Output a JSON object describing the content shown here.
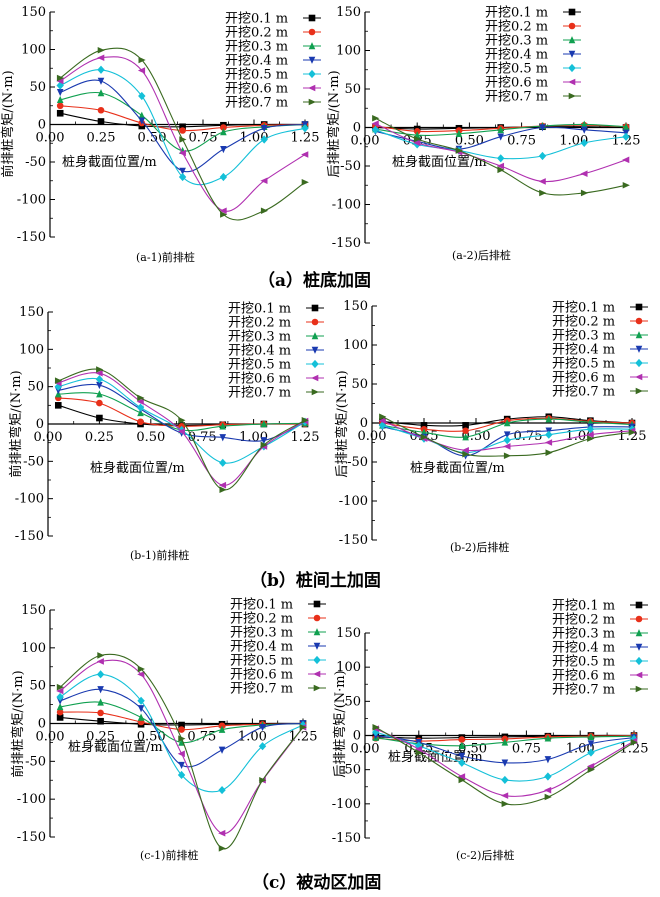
{
  "row_titles": [
    "（a）桩底加固",
    "（b）桩间土加固",
    "（c）被动区加固"
  ],
  "captions": [
    "(a-1)前排桩",
    "(a-2)后排桩",
    "(b-1)前排桩",
    "(b-2)后排桩",
    "(c-1)前排桩",
    "(c-2)后排桩"
  ],
  "series_colors": [
    "#000000",
    "#e8301a",
    "#10a050",
    "#1a3ab0",
    "#14c0d8",
    "#b030b0",
    "#3a6a20"
  ],
  "chart_data": [
    {
      "id": "a1",
      "type": "line",
      "title": "",
      "xlabel": "桩身截面位置/m",
      "ylabel": "前排桩弯矩/(N·m)",
      "xlim": [
        0,
        1.25
      ],
      "ylim": [
        -150,
        150
      ],
      "xticks": [
        0.0,
        0.25,
        0.5,
        0.75,
        1.0,
        1.25
      ],
      "yticks": [
        -150,
        -100,
        -50,
        0,
        50,
        100,
        150
      ],
      "legend_position": "top-right",
      "series": [
        {
          "name": "开挖0.1 m",
          "x": [
            0.05,
            0.25,
            0.45,
            0.65,
            0.85,
            1.05,
            1.25
          ],
          "y": [
            15,
            4,
            -2,
            -3,
            -1,
            0,
            0
          ]
        },
        {
          "name": "开挖0.2 m",
          "x": [
            0.05,
            0.25,
            0.45,
            0.65,
            0.85,
            1.05,
            1.25
          ],
          "y": [
            25,
            19,
            2,
            -8,
            -4,
            -1,
            0
          ]
        },
        {
          "name": "开挖0.3 m",
          "x": [
            0.05,
            0.25,
            0.45,
            0.65,
            0.85,
            1.05,
            1.25
          ],
          "y": [
            33,
            42,
            12,
            -35,
            -10,
            -3,
            0
          ]
        },
        {
          "name": "开挖0.4 m",
          "x": [
            0.05,
            0.25,
            0.45,
            0.65,
            0.85,
            1.05,
            1.25
          ],
          "y": [
            43,
            58,
            5,
            -62,
            -33,
            -5,
            0
          ]
        },
        {
          "name": "开挖0.5 m",
          "x": [
            0.05,
            0.25,
            0.45,
            0.65,
            0.85,
            1.05,
            1.25
          ],
          "y": [
            52,
            73,
            38,
            -70,
            -70,
            -20,
            -5
          ]
        },
        {
          "name": "开挖0.6 m",
          "x": [
            0.05,
            0.25,
            0.45,
            0.65,
            0.85,
            1.05,
            1.25
          ],
          "y": [
            58,
            89,
            72,
            -38,
            -115,
            -75,
            -40
          ]
        },
        {
          "name": "开挖0.7 m",
          "x": [
            0.05,
            0.25,
            0.45,
            0.65,
            0.85,
            1.05,
            1.25
          ],
          "y": [
            62,
            99,
            86,
            -20,
            -120,
            -115,
            -77
          ]
        }
      ]
    },
    {
      "id": "a2",
      "type": "line",
      "title": "",
      "xlabel": "桩身截面位置/m",
      "ylabel": "后排桩弯矩/(N·m)",
      "xlim": [
        0,
        1.25
      ],
      "ylim": [
        -150,
        150
      ],
      "xticks": [
        0.0,
        0.25,
        0.5,
        0.75,
        1.0,
        1.25
      ],
      "yticks": [
        -150,
        -100,
        -50,
        0,
        50,
        100,
        150
      ],
      "legend_position": "top-right",
      "series": [
        {
          "name": "开挖0.1 m",
          "x": [
            0.05,
            0.25,
            0.45,
            0.65,
            0.85,
            1.05,
            1.25
          ],
          "y": [
            0,
            -2,
            -1,
            0,
            1,
            1,
            0
          ]
        },
        {
          "name": "开挖0.2 m",
          "x": [
            0.05,
            0.25,
            0.45,
            0.65,
            0.85,
            1.05,
            1.25
          ],
          "y": [
            2,
            -5,
            -4,
            -1,
            2,
            3,
            1
          ]
        },
        {
          "name": "开挖0.3 m",
          "x": [
            0.05,
            0.25,
            0.45,
            0.65,
            0.85,
            1.05,
            1.25
          ],
          "y": [
            -2,
            -10,
            -8,
            -3,
            2,
            4,
            1
          ]
        },
        {
          "name": "开挖0.4 m",
          "x": [
            0.05,
            0.25,
            0.45,
            0.65,
            0.85,
            1.05,
            1.25
          ],
          "y": [
            -5,
            -18,
            -28,
            -12,
            0,
            -3,
            -7
          ]
        },
        {
          "name": "开挖0.5 m",
          "x": [
            0.05,
            0.25,
            0.45,
            0.65,
            0.85,
            1.05,
            1.25
          ],
          "y": [
            -3,
            -22,
            -30,
            -40,
            -37,
            -20,
            -12
          ]
        },
        {
          "name": "开挖0.6 m",
          "x": [
            0.05,
            0.25,
            0.45,
            0.65,
            0.85,
            1.05,
            1.25
          ],
          "y": [
            5,
            -20,
            -32,
            -50,
            -70,
            -60,
            -42
          ]
        },
        {
          "name": "开挖0.7 m",
          "x": [
            0.05,
            0.25,
            0.45,
            0.65,
            0.85,
            1.05,
            1.25
          ],
          "y": [
            12,
            -15,
            -30,
            -55,
            -85,
            -85,
            -75
          ]
        }
      ]
    },
    {
      "id": "b1",
      "type": "line",
      "title": "",
      "xlabel": "桩身截面位置/m",
      "ylabel": "前排桩弯矩/(N·m)",
      "xlim": [
        0,
        1.25
      ],
      "ylim": [
        -150,
        150
      ],
      "xticks": [
        0.0,
        0.25,
        0.5,
        0.75,
        1.0,
        1.25
      ],
      "yticks": [
        -150,
        -100,
        -50,
        0,
        50,
        100,
        150
      ],
      "legend_position": "top-right",
      "series": [
        {
          "name": "开挖0.1 m",
          "x": [
            0.05,
            0.25,
            0.45,
            0.65,
            0.85,
            1.05,
            1.25
          ],
          "y": [
            25,
            8,
            0,
            -2,
            -1,
            0,
            0
          ]
        },
        {
          "name": "开挖0.2 m",
          "x": [
            0.05,
            0.25,
            0.45,
            0.65,
            0.85,
            1.05,
            1.25
          ],
          "y": [
            35,
            28,
            3,
            -3,
            -1,
            0,
            0
          ]
        },
        {
          "name": "开挖0.3 m",
          "x": [
            0.05,
            0.25,
            0.45,
            0.65,
            0.85,
            1.05,
            1.25
          ],
          "y": [
            40,
            40,
            15,
            -8,
            -3,
            0,
            1
          ]
        },
        {
          "name": "开挖0.4 m",
          "x": [
            0.05,
            0.25,
            0.45,
            0.65,
            0.85,
            1.05,
            1.25
          ],
          "y": [
            45,
            52,
            20,
            -12,
            -18,
            -22,
            2
          ]
        },
        {
          "name": "开挖0.5 m",
          "x": [
            0.05,
            0.25,
            0.45,
            0.65,
            0.85,
            1.05,
            1.25
          ],
          "y": [
            50,
            60,
            22,
            -8,
            -52,
            -30,
            3
          ]
        },
        {
          "name": "开挖0.6 m",
          "x": [
            0.05,
            0.25,
            0.45,
            0.65,
            0.85,
            1.05,
            1.25
          ],
          "y": [
            55,
            68,
            30,
            -10,
            -82,
            -30,
            4
          ]
        },
        {
          "name": "开挖0.7 m",
          "x": [
            0.05,
            0.25,
            0.45,
            0.65,
            0.85,
            1.05,
            1.25
          ],
          "y": [
            58,
            73,
            35,
            5,
            -88,
            -28,
            5
          ]
        }
      ]
    },
    {
      "id": "b2",
      "type": "line",
      "title": "",
      "xlabel": "桩身截面位置/m",
      "ylabel": "后排桩弯矩/(N·m)",
      "xlim": [
        0,
        1.25
      ],
      "ylim": [
        -150,
        150
      ],
      "xticks": [
        0.0,
        0.25,
        0.5,
        0.75,
        1.0,
        1.25
      ],
      "yticks": [
        -150,
        -100,
        -50,
        0,
        50,
        100,
        150
      ],
      "legend_position": "top-right",
      "series": [
        {
          "name": "开挖0.1 m",
          "x": [
            0.05,
            0.25,
            0.45,
            0.65,
            0.85,
            1.05,
            1.25
          ],
          "y": [
            2,
            -3,
            -3,
            5,
            8,
            3,
            0
          ]
        },
        {
          "name": "开挖0.2 m",
          "x": [
            0.05,
            0.25,
            0.45,
            0.65,
            0.85,
            1.05,
            1.25
          ],
          "y": [
            0,
            -8,
            -10,
            3,
            6,
            2,
            0
          ]
        },
        {
          "name": "开挖0.3 m",
          "x": [
            0.05,
            0.25,
            0.45,
            0.65,
            0.85,
            1.05,
            1.25
          ],
          "y": [
            -3,
            -12,
            -18,
            0,
            5,
            1,
            -2
          ]
        },
        {
          "name": "开挖0.4 m",
          "x": [
            0.05,
            0.25,
            0.45,
            0.65,
            0.85,
            1.05,
            1.25
          ],
          "y": [
            -5,
            -18,
            -42,
            -15,
            -10,
            -5,
            -5
          ]
        },
        {
          "name": "开挖0.5 m",
          "x": [
            0.05,
            0.25,
            0.45,
            0.65,
            0.85,
            1.05,
            1.25
          ],
          "y": [
            -3,
            -20,
            -38,
            -22,
            -15,
            -8,
            -8
          ]
        },
        {
          "name": "开挖0.6 m",
          "x": [
            0.05,
            0.25,
            0.45,
            0.65,
            0.85,
            1.05,
            1.25
          ],
          "y": [
            3,
            -20,
            -35,
            -30,
            -25,
            -15,
            -10
          ]
        },
        {
          "name": "开挖0.7 m",
          "x": [
            0.05,
            0.25,
            0.45,
            0.65,
            0.85,
            1.05,
            1.25
          ],
          "y": [
            8,
            -18,
            -40,
            -42,
            -38,
            -20,
            -12
          ]
        }
      ]
    },
    {
      "id": "c1",
      "type": "line",
      "title": "",
      "xlabel": "桩身截面位置/m",
      "ylabel": "前排桩弯矩/(N·m)",
      "xlim": [
        0,
        1.25
      ],
      "ylim": [
        -150,
        150
      ],
      "xticks": [
        0.0,
        0.25,
        0.5,
        0.75,
        1.0,
        1.25
      ],
      "yticks": [
        -150,
        -100,
        -50,
        0,
        50,
        100,
        150
      ],
      "legend_position": "top-right",
      "series": [
        {
          "name": "开挖0.1 m",
          "x": [
            0.05,
            0.25,
            0.45,
            0.65,
            0.85,
            1.05,
            1.25
          ],
          "y": [
            8,
            3,
            -1,
            -2,
            -1,
            0,
            0
          ]
        },
        {
          "name": "开挖0.2 m",
          "x": [
            0.05,
            0.25,
            0.45,
            0.65,
            0.85,
            1.05,
            1.25
          ],
          "y": [
            15,
            14,
            2,
            -8,
            -3,
            -1,
            0
          ]
        },
        {
          "name": "开挖0.3 m",
          "x": [
            0.05,
            0.25,
            0.45,
            0.65,
            0.85,
            1.05,
            1.25
          ],
          "y": [
            22,
            28,
            8,
            -25,
            -8,
            -2,
            0
          ]
        },
        {
          "name": "开挖0.4 m",
          "x": [
            0.05,
            0.25,
            0.45,
            0.65,
            0.85,
            1.05,
            1.25
          ],
          "y": [
            30,
            45,
            20,
            -55,
            -35,
            -5,
            0
          ]
        },
        {
          "name": "开挖0.5 m",
          "x": [
            0.05,
            0.25,
            0.45,
            0.65,
            0.85,
            1.05,
            1.25
          ],
          "y": [
            35,
            65,
            30,
            -68,
            -88,
            -30,
            -2
          ]
        },
        {
          "name": "开挖0.6 m",
          "x": [
            0.05,
            0.25,
            0.45,
            0.65,
            0.85,
            1.05,
            1.25
          ],
          "y": [
            43,
            82,
            65,
            -40,
            -145,
            -75,
            -5
          ]
        },
        {
          "name": "开挖0.7 m",
          "x": [
            0.05,
            0.25,
            0.45,
            0.65,
            0.85,
            1.05,
            1.25
          ],
          "y": [
            48,
            90,
            72,
            -20,
            -165,
            -75,
            -5
          ]
        }
      ]
    },
    {
      "id": "c2",
      "type": "line",
      "title": "",
      "xlabel": "桩身截面位置/m",
      "ylabel": "后排桩弯矩/(N·m)",
      "xlim": [
        0,
        1.25
      ],
      "ylim": [
        -150,
        150
      ],
      "xticks": [
        0.0,
        0.25,
        0.5,
        0.75,
        1.0,
        1.25
      ],
      "yticks": [
        -150,
        -100,
        -50,
        0,
        50,
        100,
        150
      ],
      "legend_position": "top-right",
      "series": [
        {
          "name": "开挖0.1 m",
          "x": [
            0.05,
            0.25,
            0.45,
            0.65,
            0.85,
            1.05,
            1.25
          ],
          "y": [
            -2,
            -4,
            -3,
            -2,
            -1,
            0,
            0
          ]
        },
        {
          "name": "开挖0.2 m",
          "x": [
            0.05,
            0.25,
            0.45,
            0.65,
            0.85,
            1.05,
            1.25
          ],
          "y": [
            -4,
            -8,
            -6,
            -5,
            -2,
            -1,
            0
          ]
        },
        {
          "name": "开挖0.3 m",
          "x": [
            0.05,
            0.25,
            0.45,
            0.65,
            0.85,
            1.05,
            1.25
          ],
          "y": [
            -3,
            -12,
            -15,
            -10,
            -4,
            -2,
            -1
          ]
        },
        {
          "name": "开挖0.4 m",
          "x": [
            0.05,
            0.25,
            0.45,
            0.65,
            0.85,
            1.05,
            1.25
          ],
          "y": [
            0,
            -10,
            -30,
            -40,
            -35,
            -12,
            -3
          ]
        },
        {
          "name": "开挖0.5 m",
          "x": [
            0.05,
            0.25,
            0.45,
            0.65,
            0.85,
            1.05,
            1.25
          ],
          "y": [
            5,
            -15,
            -40,
            -65,
            -60,
            -25,
            -5
          ]
        },
        {
          "name": "开挖0.6 m",
          "x": [
            0.05,
            0.25,
            0.45,
            0.65,
            0.85,
            1.05,
            1.25
          ],
          "y": [
            10,
            -20,
            -60,
            -88,
            -80,
            -45,
            -8
          ]
        },
        {
          "name": "开挖0.7 m",
          "x": [
            0.05,
            0.25,
            0.45,
            0.65,
            0.85,
            1.05,
            1.25
          ],
          "y": [
            12,
            -25,
            -65,
            -100,
            -90,
            -50,
            -10
          ]
        }
      ]
    }
  ]
}
